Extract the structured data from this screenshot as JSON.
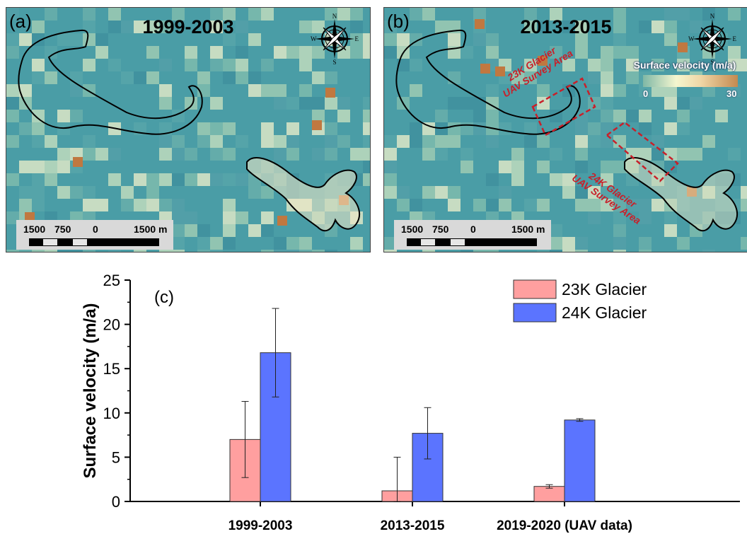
{
  "panel_a": {
    "letter": "(a)",
    "title": "1999-2003",
    "scale_labels": [
      "1500",
      "750",
      "0",
      "1500 m"
    ]
  },
  "panel_b": {
    "letter": "(b)",
    "title": "2013-2015",
    "scale_labels": [
      "1500",
      "750",
      "0",
      "1500 m"
    ],
    "annotation_23k": [
      "23K Glacier",
      "UAV Survey Area"
    ],
    "annotation_24k": [
      "24K Glacier",
      "UAV Survey Area"
    ],
    "legend": {
      "title": "Surface velocity (m/a)",
      "min": "0",
      "max": "30"
    }
  },
  "compass": {
    "n": "N",
    "s": "S",
    "e": "E",
    "w": "W"
  },
  "colors": {
    "map_background": "#4a9da6",
    "bar_23k": "#ff9f9f",
    "bar_24k": "#5b74ff",
    "annotation": "#c8202a"
  },
  "chart_data": {
    "type": "bar",
    "panel_label": "(c)",
    "categories": [
      "1999-2003",
      "2013-2015",
      "2019-2020 (UAV data)"
    ],
    "series": [
      {
        "name": "23K Glacier",
        "values": [
          7.0,
          1.2,
          1.7
        ],
        "errors": [
          4.3,
          3.8,
          0.2
        ],
        "color": "#ff9f9f"
      },
      {
        "name": "24K Glacier",
        "values": [
          16.8,
          7.7,
          9.2
        ],
        "errors": [
          5.0,
          2.9,
          0.15
        ],
        "color": "#5b74ff"
      }
    ],
    "xlabel": "",
    "ylabel": "Surface velocity (m/a)",
    "ylim": [
      0,
      25
    ],
    "yticks": [
      "0",
      "5",
      "10",
      "15",
      "20",
      "25"
    ],
    "legend_position": "top-right",
    "grid": false
  }
}
